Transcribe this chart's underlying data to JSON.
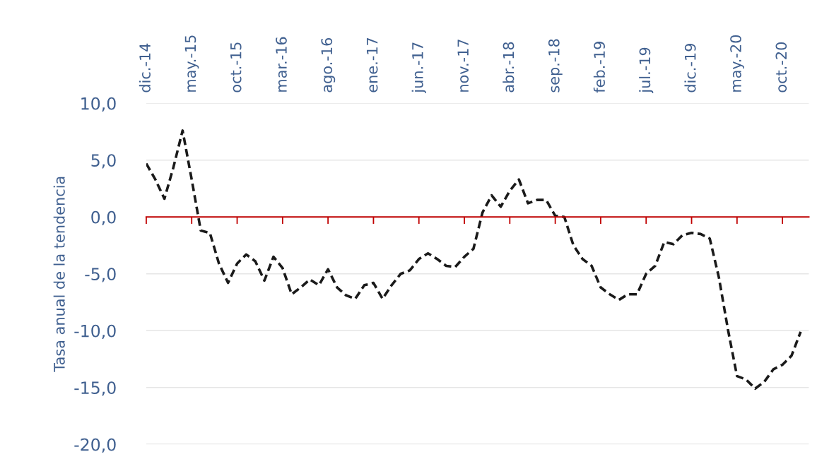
{
  "chart_data": {
    "type": "line",
    "ylabel": "Tasa anual de la tendencia",
    "categories": [
      "dic.-14",
      null,
      null,
      null,
      null,
      "may.-15",
      null,
      null,
      null,
      null,
      "oct.-15",
      null,
      null,
      null,
      null,
      "mar.-16",
      null,
      null,
      null,
      null,
      "ago.-16",
      null,
      null,
      null,
      null,
      "ene.-17",
      null,
      null,
      null,
      null,
      "jun.-17",
      null,
      null,
      null,
      null,
      "nov.-17",
      null,
      null,
      null,
      null,
      "abr.-18",
      null,
      null,
      null,
      null,
      "sep.-18",
      null,
      null,
      null,
      null,
      "feb.-19",
      null,
      null,
      null,
      null,
      "jul.-19",
      null,
      null,
      null,
      null,
      "dic.-19",
      null,
      null,
      null,
      null,
      "may.-20",
      null,
      null,
      null,
      null,
      "oct.-20",
      null,
      null
    ],
    "series": [
      {
        "color": "#1a1a1a",
        "values": [
          4.7,
          3.3,
          1.6,
          4.4,
          7.6,
          3.3,
          -1.2,
          -1.4,
          -4.1,
          -5.8,
          -4.1,
          -3.3,
          -3.9,
          -5.6,
          -3.5,
          -4.5,
          -6.8,
          -6.2,
          -5.5,
          -6.0,
          -4.6,
          -6.2,
          -6.9,
          -7.2,
          -6.0,
          -5.8,
          -7.2,
          -6.0,
          -5.0,
          -4.7,
          -3.7,
          -3.2,
          -3.7,
          -4.3,
          -4.4,
          -3.5,
          -2.8,
          0.4,
          1.9,
          0.9,
          2.3,
          3.3,
          1.2,
          1.5,
          1.5,
          0.1,
          0.0,
          -2.5,
          -3.7,
          -4.3,
          -6.2,
          -6.8,
          -7.3,
          -6.8,
          -6.8,
          -5.0,
          -4.3,
          -2.2,
          -2.4,
          -1.6,
          -1.4,
          -1.5,
          -1.9,
          -5.3,
          -9.9,
          -14.0,
          -14.3,
          -15.1,
          -14.5,
          -13.4,
          -13.0,
          -12.2,
          -10.1
        ]
      }
    ],
    "ylim": [
      -20,
      10
    ],
    "yticks": [
      {
        "value": -20,
        "label": "-20,0"
      },
      {
        "value": -15,
        "label": "-15,0"
      },
      {
        "value": -10,
        "label": "-10,0"
      },
      {
        "value": -5,
        "label": "-5,0"
      },
      {
        "value": 0,
        "label": "0,0"
      },
      {
        "value": 5,
        "label": "5,0"
      },
      {
        "value": 10,
        "label": "10,0"
      }
    ],
    "ref_lines": [
      {
        "axis": "y",
        "value": 0,
        "color": "#c00000"
      }
    ],
    "grid": "y",
    "line_style": "dashed",
    "marker": "none",
    "legend": false
  }
}
